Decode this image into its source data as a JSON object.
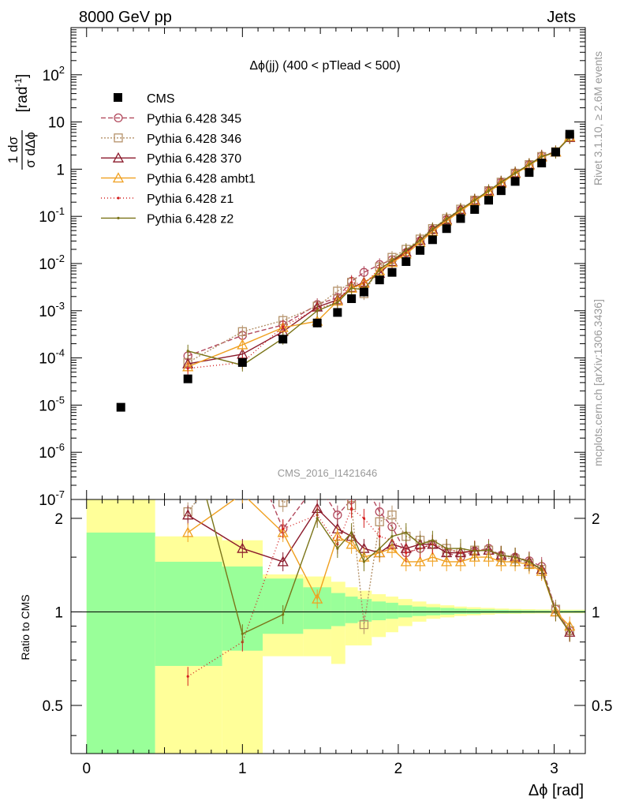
{
  "header": {
    "left": "8000 GeV pp",
    "right": "Jets"
  },
  "side_text": {
    "rivet": "Rivet 3.1.10, ≥ 2.6M events",
    "mcplots": "mcplots.cern.ch [arXiv:1306.3436]"
  },
  "chart_data": {
    "type": "scatter",
    "title": "Δϕ(jj) (400 < pTlead <  500)",
    "watermark": "CMS_2016_I1421646",
    "xlabel": "Δϕ [rad]",
    "ylabel_main": "1/σ dσ/dΔϕ [rad⁻¹]",
    "ylabel_ratio": "Ratio to CMS",
    "xlim": [
      -0.1,
      3.2
    ],
    "ylim_main": [
      1e-07,
      1000
    ],
    "ylim_ratio": [
      0.35,
      2.3
    ],
    "log_y_main": true,
    "log_y_ratio": true,
    "x_ticks": [
      0,
      1,
      2,
      3
    ],
    "main_y_ticks": [
      "10^-7",
      "10^-6",
      "10^-5",
      "10^-4",
      "10^-3",
      "10^-2",
      "10^-1",
      "1",
      "10",
      "10^2"
    ],
    "ratio_y_ticks": [
      "0.5",
      "1",
      "2"
    ],
    "legend_position": "top-left",
    "cms": {
      "name": "CMS",
      "x": [
        0.22,
        0.65,
        1.0,
        1.26,
        1.48,
        1.61,
        1.7,
        1.78,
        1.88,
        1.96,
        2.05,
        2.14,
        2.22,
        2.31,
        2.4,
        2.49,
        2.58,
        2.66,
        2.75,
        2.84,
        2.92,
        3.01,
        3.1
      ],
      "y": [
        9e-06,
        3.6e-05,
        8e-05,
        0.00025,
        0.00055,
        0.00092,
        0.0018,
        0.0025,
        0.0045,
        0.0065,
        0.011,
        0.019,
        0.032,
        0.055,
        0.09,
        0.14,
        0.22,
        0.35,
        0.55,
        0.85,
        1.35,
        2.3,
        5.5
      ]
    },
    "ratio_bands": [
      {
        "x0": 0.0,
        "x1": 0.44,
        "green": [
          0.32,
          1.8
        ],
        "yellow": [
          0.32,
          2.3
        ]
      },
      {
        "x0": 0.44,
        "x1": 0.87,
        "green": [
          0.67,
          1.45
        ],
        "yellow": [
          0.32,
          1.75
        ]
      },
      {
        "x0": 0.87,
        "x1": 1.13,
        "green": [
          0.75,
          1.4
        ],
        "yellow": [
          0.32,
          1.7
        ]
      },
      {
        "x0": 1.13,
        "x1": 1.39,
        "green": [
          0.85,
          1.28
        ],
        "yellow": [
          0.72,
          1.32
        ]
      },
      {
        "x0": 1.39,
        "x1": 1.57,
        "green": [
          0.88,
          1.2
        ],
        "yellow": [
          0.72,
          1.3
        ]
      },
      {
        "x0": 1.57,
        "x1": 1.66,
        "green": [
          0.9,
          1.15
        ],
        "yellow": [
          0.68,
          1.25
        ]
      },
      {
        "x0": 1.66,
        "x1": 1.74,
        "green": [
          0.92,
          1.12
        ],
        "yellow": [
          0.78,
          1.2
        ]
      },
      {
        "x0": 1.74,
        "x1": 1.83,
        "green": [
          0.93,
          1.1
        ],
        "yellow": [
          0.78,
          1.17
        ]
      },
      {
        "x0": 1.83,
        "x1": 1.92,
        "green": [
          0.94,
          1.08
        ],
        "yellow": [
          0.83,
          1.14
        ]
      },
      {
        "x0": 1.92,
        "x1": 2.0,
        "green": [
          0.95,
          1.07
        ],
        "yellow": [
          0.86,
          1.12
        ]
      },
      {
        "x0": 2.0,
        "x1": 2.09,
        "green": [
          0.96,
          1.05
        ],
        "yellow": [
          0.9,
          1.1
        ]
      },
      {
        "x0": 2.09,
        "x1": 2.18,
        "green": [
          0.97,
          1.04
        ],
        "yellow": [
          0.93,
          1.08
        ]
      },
      {
        "x0": 2.18,
        "x1": 2.27,
        "green": [
          0.975,
          1.035
        ],
        "yellow": [
          0.95,
          1.06
        ]
      },
      {
        "x0": 2.27,
        "x1": 2.36,
        "green": [
          0.98,
          1.03
        ],
        "yellow": [
          0.96,
          1.05
        ]
      },
      {
        "x0": 2.36,
        "x1": 2.44,
        "green": [
          0.985,
          1.025
        ],
        "yellow": [
          0.97,
          1.04
        ]
      },
      {
        "x0": 2.44,
        "x1": 2.53,
        "green": [
          0.985,
          1.02
        ],
        "yellow": [
          0.975,
          1.035
        ]
      },
      {
        "x0": 2.53,
        "x1": 2.62,
        "green": [
          0.99,
          1.018
        ],
        "yellow": [
          0.98,
          1.03
        ]
      },
      {
        "x0": 2.62,
        "x1": 2.71,
        "green": [
          0.99,
          1.015
        ],
        "yellow": [
          0.985,
          1.025
        ]
      },
      {
        "x0": 2.71,
        "x1": 2.79,
        "green": [
          0.99,
          1.013
        ],
        "yellow": [
          0.985,
          1.022
        ]
      },
      {
        "x0": 2.79,
        "x1": 2.88,
        "green": [
          0.992,
          1.012
        ],
        "yellow": [
          0.987,
          1.02
        ]
      },
      {
        "x0": 2.88,
        "x1": 2.97,
        "green": [
          0.993,
          1.011
        ],
        "yellow": [
          0.988,
          1.018
        ]
      },
      {
        "x0": 2.97,
        "x1": 3.06,
        "green": [
          0.993,
          1.01
        ],
        "yellow": [
          0.99,
          1.017
        ]
      },
      {
        "x0": 3.06,
        "x1": 3.2,
        "green": [
          0.994,
          1.01
        ],
        "yellow": [
          0.99,
          1.016
        ]
      }
    ],
    "series": [
      {
        "name": "Pythia 6.428 345",
        "color": "#b24a5e",
        "dash": "6,3",
        "marker": "circle",
        "x": [
          0.65,
          1.0,
          1.26,
          1.48,
          1.61,
          1.7,
          1.78,
          1.88,
          1.96,
          2.05,
          2.14,
          2.22,
          2.31,
          2.4,
          2.49,
          2.58,
          2.66,
          2.75,
          2.84,
          2.92,
          3.01,
          3.1
        ],
        "y": [
          0.00011,
          0.0003,
          0.0005,
          0.00135,
          0.0019,
          0.0042,
          0.0065,
          0.0095,
          0.012,
          0.017,
          0.03,
          0.052,
          0.085,
          0.135,
          0.22,
          0.35,
          0.53,
          0.83,
          1.25,
          1.9,
          2.35,
          4.8
        ],
        "ratio": [
          3.0,
          3.8,
          1.85,
          2.6,
          2.05,
          2.3,
          2.6,
          2.1,
          1.88,
          1.55,
          1.6,
          1.65,
          1.55,
          1.5,
          1.57,
          1.6,
          1.52,
          1.5,
          1.46,
          1.4,
          1.02,
          0.87
        ]
      },
      {
        "name": "Pythia 6.428 346",
        "color": "#b5926a",
        "dash": "2,2",
        "marker": "square",
        "x": [
          0.65,
          1.0,
          1.26,
          1.48,
          1.61,
          1.7,
          1.78,
          1.88,
          1.96,
          2.05,
          2.14,
          2.22,
          2.31,
          2.4,
          2.49,
          2.58,
          2.66,
          2.75,
          2.84,
          2.92,
          3.01,
          3.1
        ],
        "y": [
          8e-05,
          0.00036,
          0.00062,
          0.00125,
          0.0026,
          0.004,
          0.0023,
          0.0085,
          0.0135,
          0.02,
          0.033,
          0.055,
          0.09,
          0.142,
          0.22,
          0.35,
          0.53,
          0.82,
          1.25,
          1.85,
          2.35,
          4.8
        ],
        "ratio": [
          2.1,
          3.5,
          2.25,
          2.45,
          2.5,
          2.2,
          0.91,
          1.95,
          2.05,
          1.75,
          1.7,
          1.65,
          1.6,
          1.55,
          1.58,
          1.58,
          1.5,
          1.48,
          1.43,
          1.37,
          1.02,
          0.87
        ]
      },
      {
        "name": "Pythia 6.428 370",
        "color": "#8b1a2b",
        "dash": "",
        "marker": "triangle",
        "x": [
          0.65,
          1.0,
          1.26,
          1.48,
          1.61,
          1.7,
          1.78,
          1.88,
          1.96,
          2.05,
          2.14,
          2.22,
          2.31,
          2.4,
          2.49,
          2.58,
          2.66,
          2.75,
          2.84,
          2.92,
          3.01,
          3.1
        ],
        "y": [
          7.5e-05,
          0.00012,
          0.00036,
          0.0012,
          0.0017,
          0.0031,
          0.004,
          0.0062,
          0.011,
          0.0175,
          0.031,
          0.053,
          0.085,
          0.14,
          0.22,
          0.35,
          0.53,
          0.83,
          1.25,
          1.85,
          2.3,
          4.7
        ],
        "ratio": [
          2.05,
          1.6,
          1.45,
          2.15,
          1.85,
          1.75,
          1.6,
          1.55,
          1.65,
          1.6,
          1.65,
          1.65,
          1.55,
          1.55,
          1.57,
          1.58,
          1.52,
          1.5,
          1.45,
          1.37,
          1.0,
          0.86
        ]
      },
      {
        "name": "Pythia 6.428 ambt1",
        "color": "#f0a020",
        "dash": "",
        "marker": "triangle",
        "x": [
          0.65,
          1.0,
          1.26,
          1.48,
          1.61,
          1.7,
          1.78,
          1.88,
          1.96,
          2.05,
          2.14,
          2.22,
          2.31,
          2.4,
          2.49,
          2.58,
          2.66,
          2.75,
          2.84,
          2.92,
          3.01,
          3.1
        ],
        "y": [
          6.5e-05,
          0.00019,
          0.00044,
          0.0006,
          0.0016,
          0.003,
          0.0038,
          0.007,
          0.0105,
          0.016,
          0.028,
          0.048,
          0.08,
          0.13,
          0.21,
          0.33,
          0.5,
          0.8,
          1.2,
          1.8,
          2.3,
          4.9
        ],
        "ratio": [
          1.8,
          2.4,
          1.8,
          1.1,
          1.75,
          1.65,
          1.5,
          1.55,
          1.6,
          1.45,
          1.45,
          1.5,
          1.45,
          1.45,
          1.5,
          1.5,
          1.45,
          1.45,
          1.42,
          1.35,
          1.0,
          0.9
        ]
      },
      {
        "name": "Pythia 6.428 z1",
        "color": "#d42020",
        "dash": "1,3",
        "marker": "dot",
        "x": [
          0.65,
          1.0,
          1.26,
          1.48,
          1.61,
          1.7,
          1.78,
          1.88,
          1.96,
          2.05,
          2.14,
          2.22,
          2.31,
          2.4,
          2.49,
          2.58,
          2.66,
          2.75,
          2.84,
          2.92,
          3.01,
          3.1
        ],
        "y": [
          6e-05,
          8e-05,
          0.00046,
          0.0011,
          0.0015,
          0.004,
          0.0036,
          0.008,
          0.011,
          0.017,
          0.031,
          0.052,
          0.087,
          0.14,
          0.22,
          0.35,
          0.53,
          0.83,
          1.25,
          1.85,
          2.3,
          4.7
        ],
        "ratio": [
          0.62,
          0.8,
          1.85,
          2.05,
          1.65,
          2.15,
          2.0,
          1.75,
          1.7,
          1.55,
          1.6,
          1.65,
          1.6,
          1.55,
          1.58,
          1.58,
          1.52,
          1.5,
          1.45,
          1.37,
          1.0,
          0.86
        ]
      },
      {
        "name": "Pythia 6.428 z2",
        "color": "#7a7418",
        "dash": "",
        "marker": "dot",
        "x": [
          0.65,
          1.0,
          1.26,
          1.48,
          1.61,
          1.7,
          1.78,
          1.88,
          1.96,
          2.05,
          2.14,
          2.22,
          2.31,
          2.4,
          2.49,
          2.58,
          2.66,
          2.75,
          2.84,
          2.92,
          3.01,
          3.1
        ],
        "y": [
          0.00014,
          7e-05,
          0.00026,
          0.001,
          0.0015,
          0.003,
          0.0028,
          0.0075,
          0.0115,
          0.019,
          0.031,
          0.054,
          0.088,
          0.14,
          0.22,
          0.35,
          0.53,
          0.83,
          1.25,
          1.85,
          2.3,
          4.7
        ],
        "ratio": [
          3.9,
          0.85,
          0.98,
          2.0,
          1.6,
          1.8,
          1.45,
          1.6,
          1.75,
          1.8,
          1.65,
          1.7,
          1.6,
          1.6,
          1.57,
          1.58,
          1.52,
          1.5,
          1.45,
          1.37,
          1.0,
          0.86
        ]
      }
    ]
  }
}
